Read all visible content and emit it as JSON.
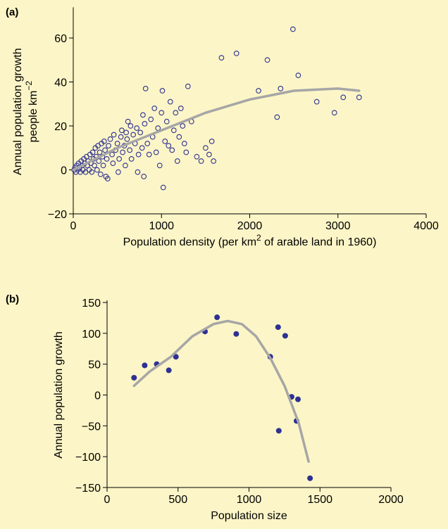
{
  "chart_data": [
    {
      "type": "scatter",
      "panel_label": "(a)",
      "y_label": [
        "Annual population growth",
        "people km"
      ],
      "y_label_superscript": "−2",
      "x_label": [
        "Population density (per km",
        "2",
        " of arable land in 1960)"
      ],
      "xlim": [
        0,
        4000
      ],
      "xticks": [
        0,
        1000,
        2000,
        3000,
        4000
      ],
      "ylim": [
        -20,
        73
      ],
      "yticks": [
        {
          "value": -20,
          "label": "−20"
        },
        0,
        20,
        40,
        60
      ],
      "series": [
        {
          "kind": "points",
          "marker": "open",
          "color": "#2e3192",
          "x": [
            10,
            20,
            30,
            40,
            50,
            60,
            70,
            80,
            90,
            100,
            110,
            120,
            130,
            140,
            150,
            160,
            170,
            180,
            190,
            200,
            210,
            220,
            230,
            240,
            250,
            260,
            270,
            280,
            290,
            300,
            310,
            320,
            330,
            340,
            350,
            360,
            370,
            380,
            390,
            400,
            420,
            440,
            450,
            460,
            480,
            500,
            510,
            520,
            540,
            550,
            560,
            580,
            590,
            600,
            610,
            620,
            640,
            650,
            660,
            680,
            700,
            720,
            730,
            740,
            760,
            780,
            790,
            800,
            810,
            820,
            840,
            860,
            880,
            900,
            920,
            940,
            960,
            980,
            1000,
            1010,
            1020,
            1040,
            1060,
            1080,
            1100,
            1120,
            1140,
            1160,
            1180,
            1200,
            1220,
            1240,
            1260,
            1280,
            1300,
            1340,
            1400,
            1450,
            1500,
            1540,
            1570,
            1590,
            1680,
            1850,
            2100,
            2200,
            2310,
            2350,
            2490,
            2550,
            2760,
            2960,
            3060,
            3240
          ],
          "values": [
            0,
            1,
            -1,
            2,
            0,
            3,
            1,
            -1,
            4,
            2,
            0,
            5,
            3,
            -1,
            6,
            2,
            4,
            0,
            7,
            3,
            -1,
            8,
            5,
            2,
            10,
            6,
            0,
            11,
            4,
            8,
            -2,
            12,
            6,
            2,
            13,
            9,
            -3,
            5,
            -4,
            11,
            14,
            7,
            3,
            16,
            9,
            12,
            -1,
            5,
            15,
            18,
            8,
            11,
            2,
            17,
            14,
            22,
            9,
            20,
            5,
            16,
            12,
            19,
            -1,
            7,
            17,
            10,
            25,
            -3,
            21,
            37,
            12,
            7,
            23,
            15,
            28,
            8,
            19,
            2,
            26,
            36,
            -8,
            13,
            22,
            11,
            31,
            9,
            18,
            26,
            4,
            15,
            28,
            20,
            12,
            8,
            38,
            22,
            6,
            4,
            10,
            7,
            13,
            4,
            51,
            53,
            36,
            50,
            24,
            37,
            64,
            43,
            31,
            26,
            33,
            33
          ]
        },
        {
          "kind": "line",
          "color": "#a6a6a6",
          "x": [
            0,
            500,
            1000,
            1500,
            2000,
            2500,
            3000,
            3240
          ],
          "values": [
            0,
            10,
            18,
            26,
            32,
            36,
            37,
            36
          ]
        }
      ]
    },
    {
      "type": "scatter",
      "panel_label": "(b)",
      "y_label": [
        "Annual population growth"
      ],
      "x_label": [
        "Population size"
      ],
      "xlim": [
        0,
        2000
      ],
      "xticks": [
        0,
        500,
        1000,
        1500,
        2000
      ],
      "ylim": [
        -150,
        150
      ],
      "yticks": [
        {
          "value": -150,
          "label": "−150"
        },
        {
          "value": -100,
          "label": "−100"
        },
        {
          "value": -50,
          "label": "−50"
        },
        0,
        50,
        100,
        150
      ],
      "series": [
        {
          "kind": "points",
          "marker": "filled",
          "color": "#2e3192",
          "x": [
            190,
            265,
            350,
            435,
            485,
            690,
            775,
            910,
            1150,
            1205,
            1210,
            1255,
            1300,
            1335,
            1345,
            1430
          ],
          "values": [
            28,
            48,
            50,
            40,
            62,
            103,
            126,
            99,
            62,
            110,
            -58,
            96,
            -3,
            -42,
            -7,
            -135
          ]
        },
        {
          "kind": "line",
          "color": "#a6a6a6",
          "x": [
            190,
            300,
            450,
            600,
            750,
            850,
            950,
            1050,
            1150,
            1250,
            1350,
            1420
          ],
          "values": [
            15,
            38,
            62,
            95,
            115,
            120,
            115,
            95,
            60,
            15,
            -45,
            -108
          ]
        }
      ]
    }
  ]
}
